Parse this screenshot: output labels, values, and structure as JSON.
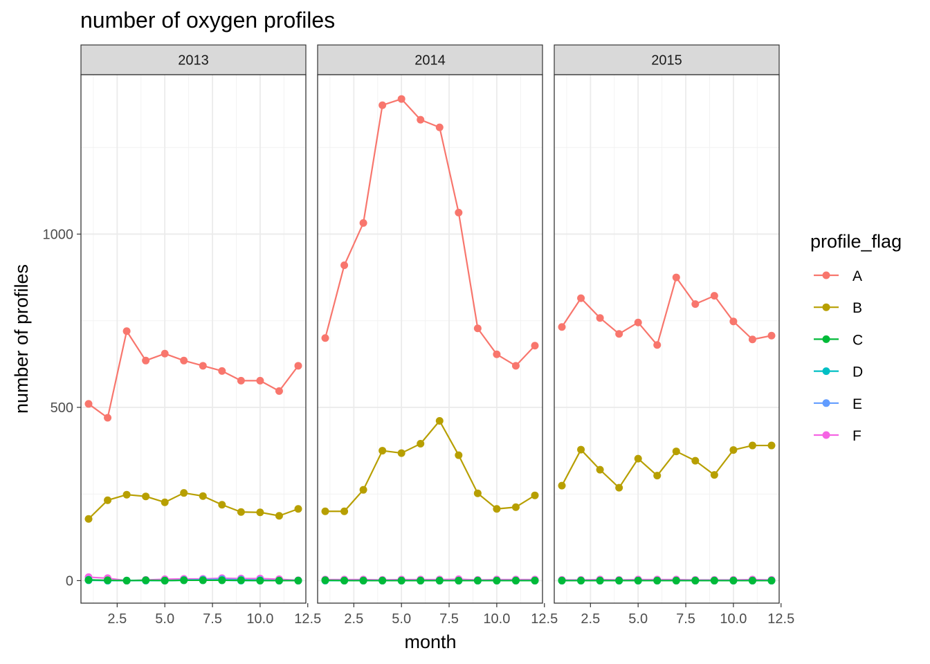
{
  "chart_data": {
    "type": "line",
    "title": "number of oxygen profiles",
    "xlabel": "month",
    "ylabel": "number of profiles",
    "xlim": [
      0.6,
      12.4
    ],
    "ylim": [
      -65,
      1460
    ],
    "x_ticks": [
      2.5,
      5.0,
      7.5,
      10.0,
      12.5
    ],
    "x_tick_labels": [
      "2.5",
      "5.0",
      "7.5",
      "10.0",
      "12.5"
    ],
    "y_ticks": [
      0,
      500,
      1000
    ],
    "y_tick_labels": [
      "0",
      "500",
      "1000"
    ],
    "grid": true,
    "legend": {
      "title": "profile_flag",
      "position": "right"
    },
    "colors": {
      "A": "#F8766D",
      "B": "#B79F00",
      "C": "#00BA38",
      "D": "#00BFC4",
      "E": "#619CFF",
      "F": "#F564E3"
    },
    "panels": [
      {
        "label": "2013",
        "series": [
          {
            "name": "A",
            "x": [
              1,
              2,
              3,
              4,
              5,
              6,
              7,
              8,
              9,
              10,
              11,
              12
            ],
            "values": [
              510,
              470,
              720,
              635,
              655,
              635,
              620,
              605,
              577,
              577,
              547,
              620
            ]
          },
          {
            "name": "B",
            "x": [
              1,
              2,
              3,
              4,
              5,
              6,
              7,
              8,
              9,
              10,
              11,
              12
            ],
            "values": [
              178,
              232,
              248,
              243,
              226,
              253,
              244,
              219,
              198,
              197,
              187,
              207
            ]
          },
          {
            "name": "C",
            "x": [
              1,
              2,
              3,
              4,
              5,
              6,
              7,
              8,
              9,
              10,
              11,
              12
            ],
            "values": [
              2,
              1,
              0,
              1,
              0,
              1,
              1,
              1,
              1,
              0,
              0,
              0
            ]
          },
          {
            "name": "D",
            "x": [
              1,
              2,
              3,
              4,
              5,
              6,
              7,
              8,
              9,
              10,
              11,
              12
            ],
            "values": [
              1,
              0,
              0,
              0,
              0,
              1,
              1,
              1,
              0,
              0,
              0,
              0
            ]
          },
          {
            "name": "E",
            "x": [
              1,
              2,
              3,
              4,
              5,
              6,
              7,
              8,
              9,
              10,
              11,
              12
            ],
            "values": [
              3,
              0,
              0,
              1,
              0,
              2,
              3,
              4,
              3,
              2,
              0,
              0
            ]
          },
          {
            "name": "F",
            "x": [
              1,
              2,
              3,
              4,
              5,
              6,
              7,
              8,
              9,
              10,
              11,
              12
            ],
            "values": [
              10,
              7,
              0,
              2,
              4,
              5,
              5,
              7,
              6,
              6,
              4,
              1
            ]
          }
        ]
      },
      {
        "label": "2014",
        "series": [
          {
            "name": "A",
            "x": [
              1,
              2,
              3,
              4,
              5,
              6,
              7,
              8,
              9,
              10,
              11,
              12
            ],
            "values": [
              700,
              910,
              1032,
              1372,
              1390,
              1330,
              1308,
              1062,
              728,
              653,
              620,
              678
            ]
          },
          {
            "name": "B",
            "x": [
              1,
              2,
              3,
              4,
              5,
              6,
              7,
              8,
              9,
              10,
              11,
              12
            ],
            "values": [
              200,
              200,
              262,
              375,
              368,
              395,
              461,
              362,
              252,
              207,
              212,
              246
            ]
          },
          {
            "name": "C",
            "x": [
              1,
              2,
              3,
              4,
              5,
              6,
              7,
              8,
              9,
              10,
              11,
              12
            ],
            "values": [
              1,
              0,
              0,
              0,
              0,
              0,
              0,
              0,
              0,
              0,
              0,
              0
            ]
          },
          {
            "name": "D",
            "x": [
              1,
              2,
              3,
              4,
              5,
              6,
              7,
              8,
              9,
              10,
              11,
              12
            ],
            "values": [
              0,
              0,
              0,
              0,
              0,
              0,
              0,
              0,
              0,
              0,
              0,
              0
            ]
          },
          {
            "name": "E",
            "x": [
              1,
              2,
              3,
              4,
              5,
              6,
              7,
              8,
              9,
              10,
              11,
              12
            ],
            "values": [
              1,
              0,
              0,
              0,
              0,
              0,
              0,
              0,
              0,
              0,
              0,
              0
            ]
          },
          {
            "name": "F",
            "x": [
              1,
              2,
              3,
              4,
              5,
              6,
              7,
              8,
              9,
              10,
              11,
              12
            ],
            "values": [
              3,
              3,
              3,
              2,
              3,
              3,
              3,
              4,
              2,
              3,
              3,
              3
            ]
          }
        ]
      },
      {
        "label": "2015",
        "series": [
          {
            "name": "A",
            "x": [
              1,
              2,
              3,
              4,
              5,
              6,
              7,
              8,
              9,
              10,
              11,
              12
            ],
            "values": [
              732,
              815,
              758,
              712,
              745,
              680,
              875,
              798,
              822,
              748,
              696,
              707
            ]
          },
          {
            "name": "B",
            "x": [
              1,
              2,
              3,
              4,
              5,
              6,
              7,
              8,
              9,
              10,
              11,
              12
            ],
            "values": [
              274,
              378,
              320,
              268,
              352,
              303,
              373,
              346,
              305,
              377,
              390,
              390
            ]
          },
          {
            "name": "C",
            "x": [
              1,
              2,
              3,
              4,
              5,
              6,
              7,
              8,
              9,
              10,
              11,
              12
            ],
            "values": [
              0,
              0,
              0,
              0,
              0,
              0,
              0,
              0,
              0,
              0,
              0,
              0
            ]
          },
          {
            "name": "D",
            "x": [
              1,
              2,
              3,
              4,
              5,
              6,
              7,
              8,
              9,
              10,
              11,
              12
            ],
            "values": [
              0,
              0,
              0,
              0,
              0,
              0,
              0,
              0,
              0,
              0,
              0,
              0
            ]
          },
          {
            "name": "E",
            "x": [
              1,
              2,
              3,
              4,
              5,
              6,
              7,
              8,
              9,
              10,
              11,
              12
            ],
            "values": [
              0,
              0,
              0,
              0,
              0,
              0,
              0,
              0,
              0,
              0,
              0,
              0
            ]
          },
          {
            "name": "F",
            "x": [
              1,
              2,
              3,
              4,
              5,
              6,
              7,
              8,
              9,
              10,
              11,
              12
            ],
            "values": [
              2,
              2,
              3,
              2,
              3,
              3,
              3,
              2,
              2,
              2,
              3,
              2
            ]
          }
        ]
      }
    ]
  }
}
